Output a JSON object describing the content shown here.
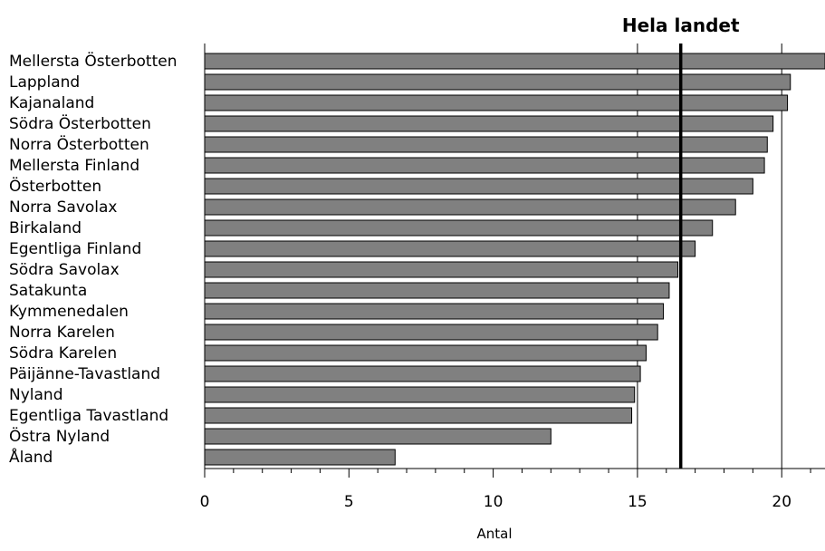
{
  "chart_data": {
    "type": "bar",
    "orientation": "horizontal",
    "categories": [
      "Mellersta Österbotten",
      "Lappland",
      "Kajanaland",
      "Södra Österbotten",
      "Norra Österbotten",
      "Mellersta Finland",
      "Österbotten",
      "Norra Savolax",
      "Birkaland",
      "Egentliga Finland",
      "Södra Savolax",
      "Satakunta",
      "Kymmenedalen",
      "Norra Karelen",
      "Södra Karelen",
      "Päijänne-Tavastland",
      "Nyland",
      "Egentliga Tavastland",
      "Östra Nyland",
      "Åland"
    ],
    "values": [
      21.5,
      20.3,
      20.2,
      19.7,
      19.5,
      19.4,
      19.0,
      18.4,
      17.6,
      17.0,
      16.4,
      16.1,
      15.9,
      15.7,
      15.3,
      15.1,
      14.9,
      14.8,
      12.0,
      6.6
    ],
    "xlabel": "Antal",
    "ylabel": "",
    "title": "",
    "xlim": [
      0,
      21.5
    ],
    "xticks": [
      0,
      5,
      10,
      15,
      20
    ],
    "xtick_labels": [
      "0",
      "5",
      "10",
      "15",
      "20"
    ],
    "minor_ticks_every": 1,
    "grid": "vertical lines at 15 and 20",
    "reference_line": {
      "label": "Hela landet",
      "value": 16.5
    },
    "bar_color": "#808080",
    "bar_edge_color": "#000000",
    "reference_line_color": "#000000"
  }
}
